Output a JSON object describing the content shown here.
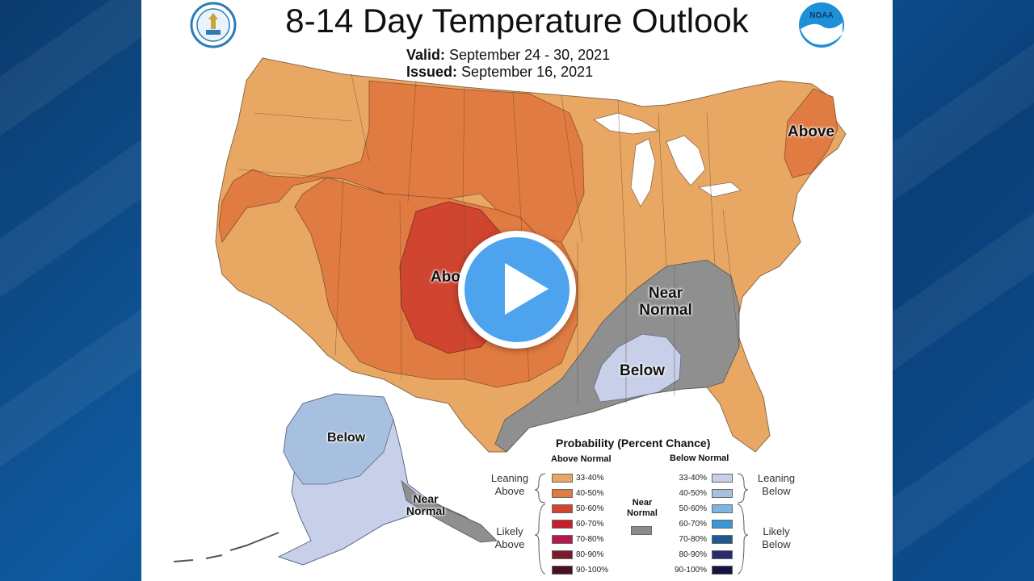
{
  "header": {
    "title": "8-14 Day Temperature Outlook",
    "valid_label": "Valid:",
    "valid_value": "September 24 - 30, 2021",
    "issued_label": "Issued:",
    "issued_value": "September 16, 2021",
    "left_logo_icon": "department-of-commerce-seal-icon",
    "right_logo_icon": "noaa-logo-icon",
    "right_logo_text": "NOAA"
  },
  "map_labels": {
    "above_west": "Above",
    "above_northeast": "Above",
    "near_normal_southeast": "Near Normal",
    "below_gulf": "Below",
    "below_alaska": "Below",
    "near_normal_alaska": "Near Normal"
  },
  "legend": {
    "title": "Probability (Percent Chance)",
    "above_header": "Above Normal",
    "below_header": "Below Normal",
    "near_header": "Near Normal",
    "leaning_above": "Leaning Above",
    "likely_above": "Likely Above",
    "leaning_below": "Leaning Below",
    "likely_below": "Likely Below",
    "above_bins": [
      {
        "label": "33-40%",
        "color": "#e8a864"
      },
      {
        "label": "40-50%",
        "color": "#e07b42"
      },
      {
        "label": "50-60%",
        "color": "#cf4530"
      },
      {
        "label": "60-70%",
        "color": "#c41e2c"
      },
      {
        "label": "70-80%",
        "color": "#b8174a"
      },
      {
        "label": "80-90%",
        "color": "#7a1a2a"
      },
      {
        "label": "90-100%",
        "color": "#4a1020"
      }
    ],
    "below_bins": [
      {
        "label": "33-40%",
        "color": "#c7d0e8"
      },
      {
        "label": "40-50%",
        "color": "#a8c0e0"
      },
      {
        "label": "50-60%",
        "color": "#7cb4e4"
      },
      {
        "label": "60-70%",
        "color": "#3d97d6"
      },
      {
        "label": "70-80%",
        "color": "#1e5a92"
      },
      {
        "label": "80-90%",
        "color": "#2a2a72"
      },
      {
        "label": "90-100%",
        "color": "#141440"
      }
    ],
    "near_color": "#8a8a8a"
  },
  "colors": {
    "lean_above": "#e8a864",
    "above_40_50": "#e07b42",
    "above_50_60": "#cf4530",
    "near_normal": "#8f8f8f",
    "lean_below": "#c7d0e8",
    "below_40_50": "#a8c0e0"
  },
  "video": {
    "play_icon": "play-button-icon"
  }
}
